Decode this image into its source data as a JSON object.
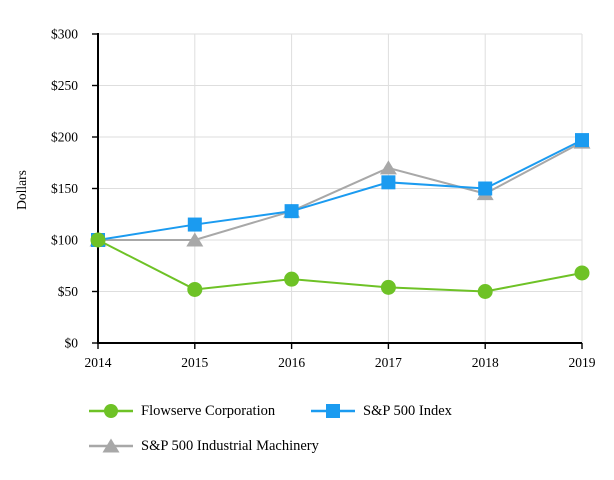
{
  "chart_data": {
    "type": "line",
    "title": "",
    "xlabel": "",
    "ylabel": "Dollars",
    "categories": [
      "2014",
      "2015",
      "2016",
      "2017",
      "2018",
      "2019"
    ],
    "ylim": [
      0,
      300
    ],
    "y_tick_step": 50,
    "y_tick_labels": [
      "$0",
      "$50",
      "$100",
      "$150",
      "$200",
      "$250",
      "$300"
    ],
    "grid": true,
    "legend_position": "below-left",
    "series": [
      {
        "name": "Flowserve Corporation",
        "marker": "circle",
        "color": "#6EC226",
        "zorder": 3,
        "values": [
          100,
          52,
          62,
          54,
          50,
          68
        ]
      },
      {
        "name": "S&P 500 Index",
        "marker": "square",
        "color": "#1B9BF0",
        "zorder": 2,
        "values": [
          100,
          115,
          128,
          156,
          150,
          197
        ]
      },
      {
        "name": "S&P 500 Industrial Machinery",
        "marker": "triangle",
        "color": "#A8A8A8",
        "zorder": 1,
        "values": [
          100,
          100,
          128,
          170,
          145,
          195
        ]
      }
    ],
    "colors": {
      "axis": "#000000",
      "grid": "#DEDEDE",
      "background": "#FFFFFF",
      "text": "#000000"
    }
  }
}
